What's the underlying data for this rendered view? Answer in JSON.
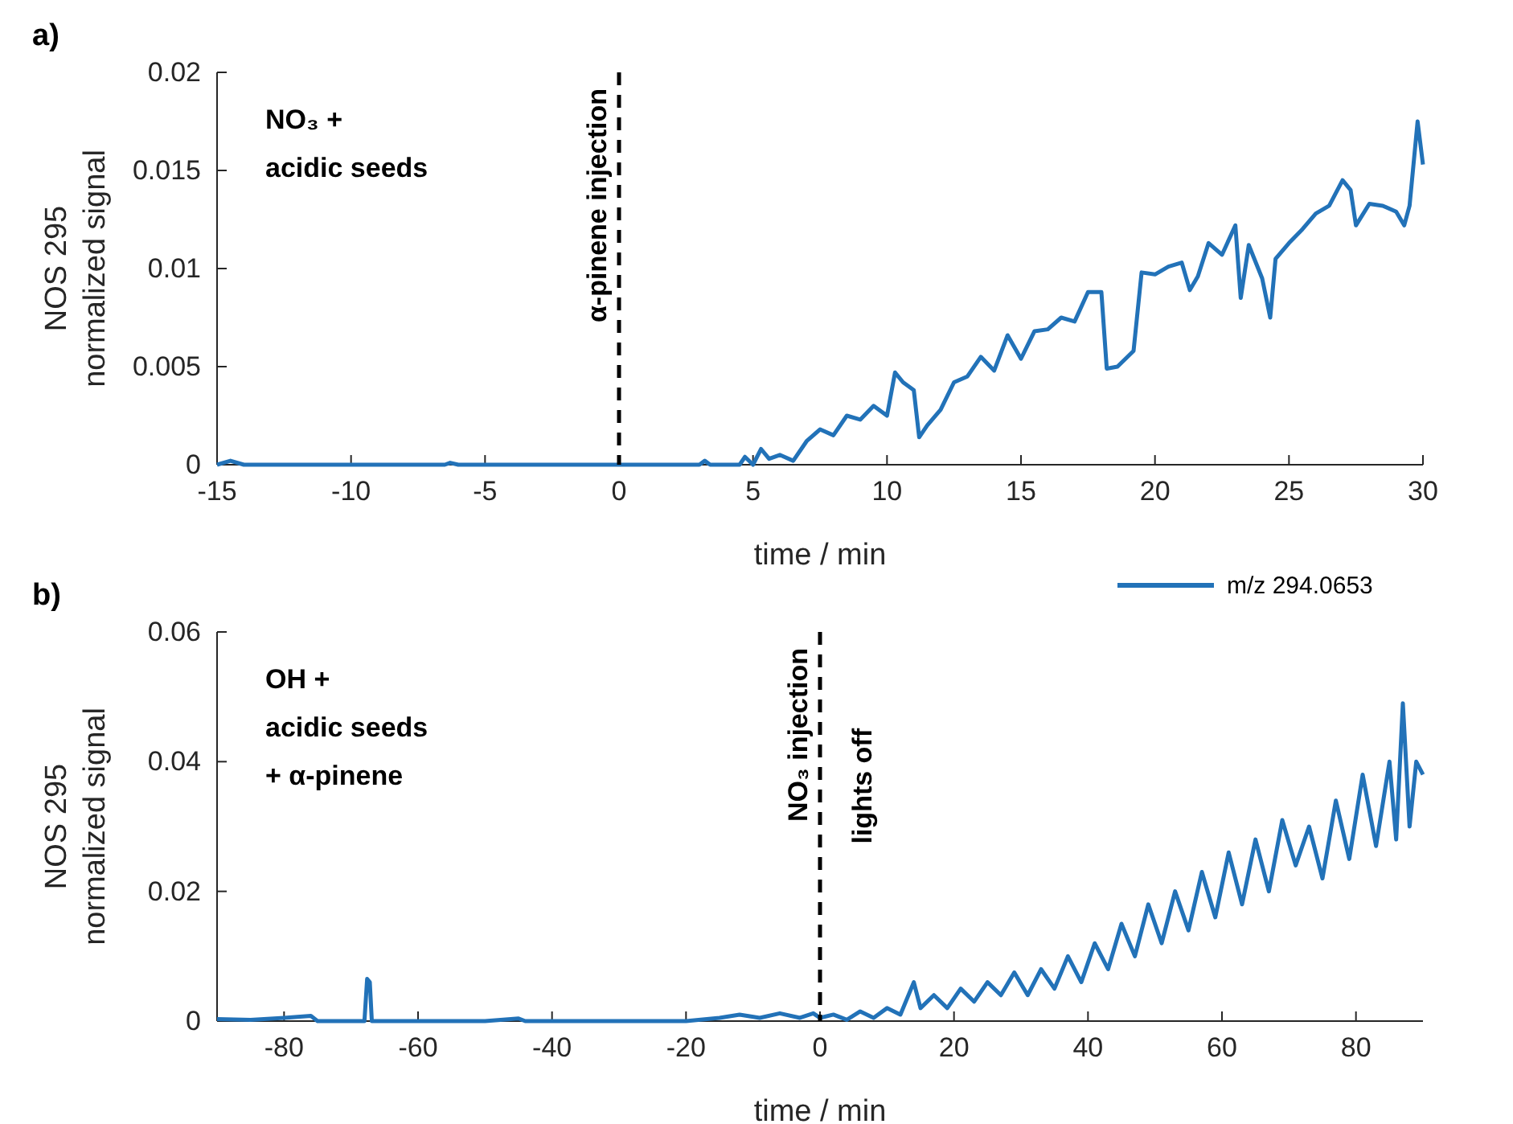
{
  "chart_data": [
    {
      "type": "line",
      "title": "a)",
      "xlabel": "time / min",
      "ylabel": "NOS 295\nnormalized signal",
      "xlim": [
        -15,
        30
      ],
      "xticks": [
        -15,
        -10,
        -5,
        0,
        5,
        10,
        15,
        20,
        25,
        30
      ],
      "ylim": [
        0,
        0.02
      ],
      "yticks": [
        0,
        0.005,
        0.01,
        0.015,
        0.02
      ],
      "legend": "bottom right",
      "grid": false,
      "annotations": [
        "NO₃ +\nacidic seeds"
      ],
      "ref_lines": [
        {
          "axis": "x",
          "value": 0,
          "label": "α-pinene injection",
          "color": "#000000",
          "line_style": "dashed"
        }
      ],
      "series": [
        {
          "name": "m/z 294.0653",
          "color": "#2272b8",
          "x": [
            -15,
            -14.5,
            -14,
            -10,
            -6.5,
            -6.3,
            -6,
            0,
            3,
            3.2,
            3.4,
            4.5,
            4.7,
            5,
            5.3,
            5.6,
            6,
            6.5,
            7,
            7.5,
            8,
            8.5,
            9,
            9.5,
            10,
            10.3,
            10.6,
            11,
            11.2,
            11.5,
            12,
            12.5,
            13,
            13.5,
            14,
            14.5,
            15,
            15.5,
            16,
            16.5,
            17,
            17.5,
            18,
            18.2,
            18.6,
            19.2,
            19.5,
            20,
            20.5,
            21,
            21.3,
            21.6,
            22,
            22.5,
            23,
            23.2,
            23.5,
            24,
            24.3,
            24.5,
            25,
            25.5,
            26,
            26.5,
            27,
            27.3,
            27.5,
            28,
            28.5,
            29,
            29.3,
            29.5,
            29.8,
            30
          ],
          "values": [
            0,
            0.0002,
            0,
            0,
            0,
            0.0001,
            0,
            0,
            0,
            0.0002,
            0,
            0,
            0.0004,
            0,
            0.0008,
            0.0003,
            0.0005,
            0.0002,
            0.0012,
            0.0018,
            0.0015,
            0.0025,
            0.0023,
            0.003,
            0.0025,
            0.0047,
            0.0042,
            0.0038,
            0.0014,
            0.002,
            0.0028,
            0.0042,
            0.0045,
            0.0055,
            0.0048,
            0.0066,
            0.0054,
            0.0068,
            0.0069,
            0.0075,
            0.0073,
            0.0088,
            0.0088,
            0.0049,
            0.005,
            0.0058,
            0.0098,
            0.0097,
            0.0101,
            0.0103,
            0.0089,
            0.0096,
            0.0113,
            0.0107,
            0.0122,
            0.0085,
            0.0112,
            0.0095,
            0.0075,
            0.0105,
            0.0113,
            0.012,
            0.0128,
            0.0132,
            0.0145,
            0.014,
            0.0122,
            0.0133,
            0.0132,
            0.0129,
            0.0122,
            0.0132,
            0.0175,
            0.0153
          ]
        }
      ]
    },
    {
      "type": "line",
      "title": "b)",
      "xlabel": "time / min",
      "ylabel": "NOS 295\nnormalized signal",
      "xlim": [
        -90,
        90
      ],
      "xticks": [
        -80,
        -60,
        -40,
        -20,
        0,
        20,
        40,
        60,
        80
      ],
      "ylim": [
        0,
        0.06
      ],
      "yticks": [
        0,
        0.02,
        0.04,
        0.06
      ],
      "grid": false,
      "annotations": [
        "OH +\nacidic seeds\n+ α-pinene"
      ],
      "ref_lines": [
        {
          "axis": "x",
          "value": 0,
          "label": "NO₃ injection\nlights off",
          "color": "#000000",
          "line_style": "dashed"
        }
      ],
      "series": [
        {
          "color": "#2272b8",
          "x": [
            -90,
            -85,
            -80,
            -76,
            -75,
            -68,
            -67.6,
            -67.2,
            -66.9,
            -50,
            -45,
            -44,
            -20,
            -15,
            -12,
            -9,
            -6,
            -3,
            -1,
            0,
            2,
            4,
            6,
            8,
            10,
            12,
            14,
            15,
            17,
            19,
            21,
            23,
            25,
            27,
            29,
            31,
            33,
            35,
            37,
            39,
            41,
            43,
            45,
            47,
            49,
            51,
            53,
            55,
            57,
            59,
            61,
            63,
            65,
            67,
            69,
            71,
            73,
            75,
            77,
            79,
            81,
            83,
            85,
            86,
            87,
            88,
            89,
            90
          ],
          "values": [
            0.0003,
            0.0002,
            0.0005,
            0.0008,
            0,
            0,
            0.0065,
            0.006,
            0,
            0,
            0.0004,
            0,
            0,
            0.0005,
            0.001,
            0.0005,
            0.0012,
            0.0005,
            0.0012,
            0.0005,
            0.001,
            0.0002,
            0.0015,
            0.0005,
            0.002,
            0.001,
            0.006,
            0.002,
            0.004,
            0.002,
            0.005,
            0.003,
            0.006,
            0.004,
            0.0075,
            0.004,
            0.008,
            0.005,
            0.01,
            0.006,
            0.012,
            0.008,
            0.015,
            0.01,
            0.018,
            0.012,
            0.02,
            0.014,
            0.023,
            0.016,
            0.026,
            0.018,
            0.028,
            0.02,
            0.031,
            0.024,
            0.03,
            0.022,
            0.034,
            0.025,
            0.038,
            0.027,
            0.04,
            0.028,
            0.049,
            0.03,
            0.04,
            0.038
          ]
        }
      ]
    }
  ]
}
